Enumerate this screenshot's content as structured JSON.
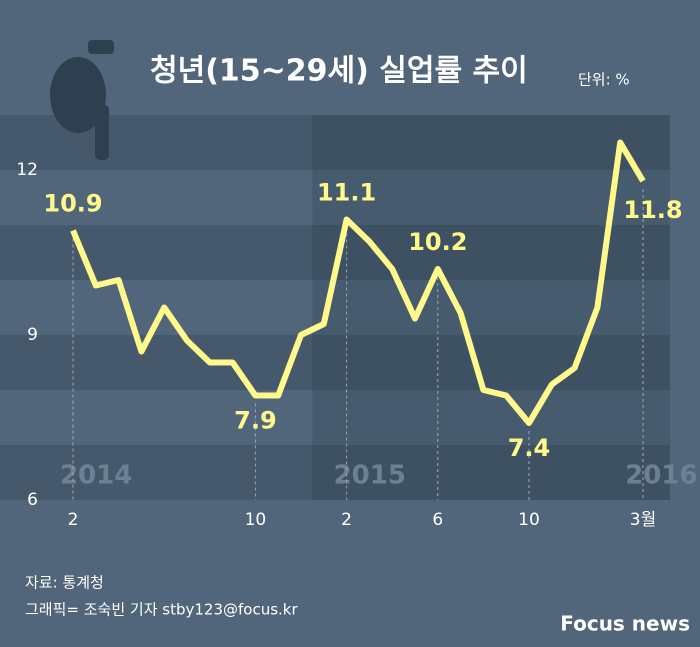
{
  "chart_data": {
    "type": "line",
    "title": "청년(15~29세) 실업률 추이",
    "unit": "단위: %",
    "categories": [
      "2",
      null,
      null,
      null,
      null,
      null,
      null,
      null,
      "10",
      null,
      null,
      null,
      "2",
      null,
      null,
      null,
      "6",
      null,
      null,
      null,
      "10",
      null,
      null,
      null,
      null,
      "3월"
    ],
    "year_labels": [
      "2014",
      "2015",
      "2016"
    ],
    "series": [
      {
        "color": "#fff98c",
        "values": [
          10.9,
          9.9,
          10.0,
          8.7,
          9.5,
          8.9,
          8.5,
          8.5,
          7.9,
          7.9,
          9.0,
          9.2,
          11.1,
          10.7,
          10.2,
          9.3,
          10.2,
          9.4,
          8.0,
          7.9,
          7.4,
          8.1,
          8.4,
          9.5,
          12.5,
          11.8
        ],
        "value_labels": [
          "10.9",
          null,
          null,
          null,
          null,
          null,
          null,
          null,
          "7.9",
          null,
          null,
          null,
          "11.1",
          null,
          null,
          null,
          "10.2",
          null,
          null,
          null,
          "7.4",
          null,
          null,
          null,
          null,
          "11.8"
        ]
      }
    ],
    "ylim": [
      6,
      13
    ],
    "yticks": [
      12,
      9,
      6
    ],
    "source": "자료: 통계청",
    "credit": "그래픽= 조숙빈 기자 stby123@focus.kr",
    "logo": "Focus news"
  }
}
